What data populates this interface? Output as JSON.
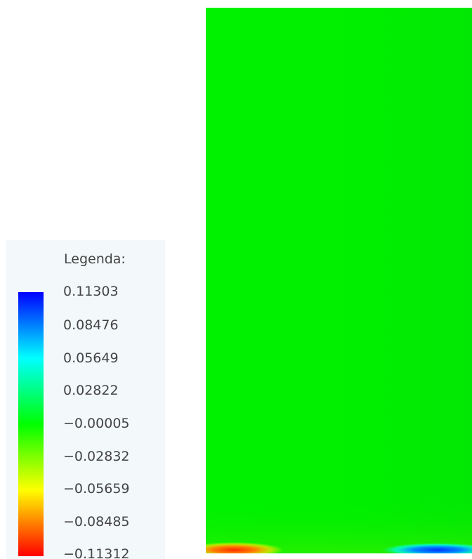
{
  "legend": {
    "title": "Legenda:",
    "ticks": [
      "0.11303",
      "0.08476",
      "0.05649",
      "0.02822",
      "−0.00005",
      "−0.02832",
      "−0.05659",
      "−0.08485",
      "−0.11312"
    ],
    "colormap": [
      "#0000ff",
      "#00ffff",
      "#00ff00",
      "#ffff00",
      "#ff0000"
    ]
  },
  "plot": {
    "base_color": "#00ee00"
  }
}
